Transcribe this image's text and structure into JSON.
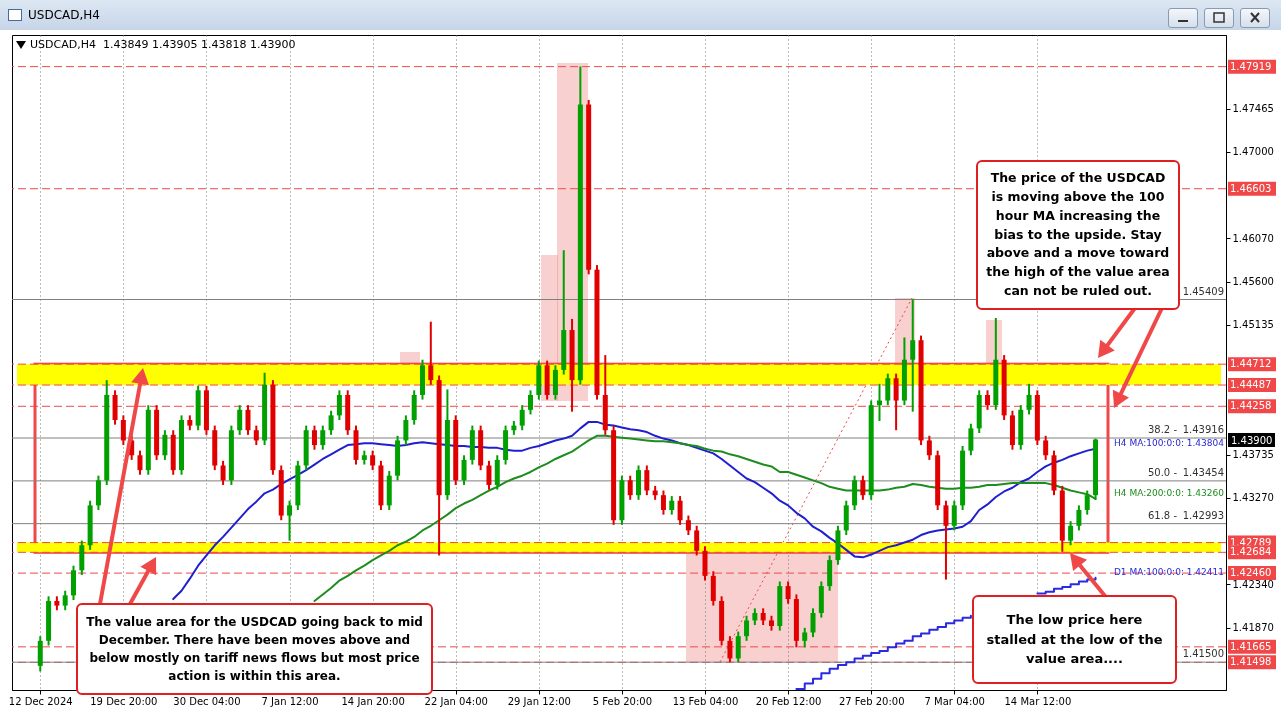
{
  "chart_data": {
    "type": "candlestick",
    "title": "USDCAD,H4",
    "subtitle": "USDCAD,H4  1.43849 1.43905 1.43818 1.43900",
    "categories": [
      "12 Dec 2024",
      null,
      null,
      null,
      null,
      null,
      null,
      null,
      null,
      null,
      "19 Dec 20:00",
      null,
      null,
      null,
      null,
      null,
      null,
      null,
      null,
      null,
      "30 Dec 04:00",
      null,
      null,
      null,
      null,
      null,
      null,
      null,
      null,
      null,
      "7 Jan 12:00",
      null,
      null,
      null,
      null,
      null,
      null,
      null,
      null,
      null,
      "14 Jan 20:00",
      null,
      null,
      null,
      null,
      null,
      null,
      null,
      null,
      null,
      "22 Jan 04:00",
      null,
      null,
      null,
      null,
      null,
      null,
      null,
      null,
      null,
      "29 Jan 12:00",
      null,
      null,
      null,
      null,
      null,
      null,
      null,
      null,
      null,
      "5 Feb 20:00",
      null,
      null,
      null,
      null,
      null,
      null,
      null,
      null,
      null,
      "13 Feb 04:00",
      null,
      null,
      null,
      null,
      null,
      null,
      null,
      null,
      null,
      "20 Feb 12:00",
      null,
      null,
      null,
      null,
      null,
      null,
      null,
      null,
      null,
      "27 Feb 20:00",
      null,
      null,
      null,
      null,
      null,
      null,
      null,
      null,
      null,
      "7 Mar 04:00",
      null,
      null,
      null,
      null,
      null,
      null,
      null,
      null,
      null,
      "14 Mar 12:00",
      null,
      null,
      null,
      null,
      null,
      null,
      null
    ],
    "ohlc": [
      [
        1.4146,
        1.4178,
        1.414,
        1.4173
      ],
      [
        1.4173,
        1.4221,
        1.4168,
        1.4216
      ],
      [
        1.4216,
        1.4221,
        1.4206,
        1.4211
      ],
      [
        1.4211,
        1.4227,
        1.4206,
        1.4222
      ],
      [
        1.4222,
        1.4254,
        1.4217,
        1.4249
      ],
      [
        1.4249,
        1.4281,
        1.4244,
        1.4276
      ],
      [
        1.4276,
        1.4324,
        1.4271,
        1.4319
      ],
      [
        1.4319,
        1.4351,
        1.4314,
        1.4346
      ],
      [
        1.4346,
        1.4454,
        1.4341,
        1.4438
      ],
      [
        1.4438,
        1.4443,
        1.4406,
        1.4411
      ],
      [
        1.4411,
        1.4416,
        1.4384,
        1.4389
      ],
      [
        1.4389,
        1.4394,
        1.4368,
        1.4373
      ],
      [
        1.4373,
        1.4378,
        1.4352,
        1.4357
      ],
      [
        1.4357,
        1.4427,
        1.4352,
        1.4422
      ],
      [
        1.4422,
        1.4427,
        1.4368,
        1.4373
      ],
      [
        1.4373,
        1.44,
        1.4368,
        1.4395
      ],
      [
        1.4395,
        1.44,
        1.4352,
        1.4357
      ],
      [
        1.4357,
        1.4416,
        1.4352,
        1.4411
      ],
      [
        1.4411,
        1.4416,
        1.44,
        1.4405
      ],
      [
        1.4405,
        1.4448,
        1.44,
        1.4443
      ],
      [
        1.4443,
        1.4448,
        1.4395,
        1.44
      ],
      [
        1.44,
        1.4405,
        1.4357,
        1.4362
      ],
      [
        1.4362,
        1.4367,
        1.4341,
        1.4346
      ],
      [
        1.4346,
        1.4405,
        1.4341,
        1.44
      ],
      [
        1.44,
        1.4427,
        1.4395,
        1.4422
      ],
      [
        1.4422,
        1.4427,
        1.4395,
        1.44
      ],
      [
        1.44,
        1.4405,
        1.4384,
        1.4389
      ],
      [
        1.4389,
        1.4462,
        1.4384,
        1.4449
      ],
      [
        1.4449,
        1.4454,
        1.4352,
        1.4357
      ],
      [
        1.4357,
        1.4362,
        1.4303,
        1.4308
      ],
      [
        1.4308,
        1.4324,
        1.4281,
        1.4319
      ],
      [
        1.4319,
        1.4367,
        1.4314,
        1.4362
      ],
      [
        1.4362,
        1.4405,
        1.4357,
        1.44
      ],
      [
        1.44,
        1.4405,
        1.4379,
        1.4384
      ],
      [
        1.4384,
        1.4405,
        1.4379,
        1.44
      ],
      [
        1.44,
        1.4421,
        1.4395,
        1.4416
      ],
      [
        1.4416,
        1.4443,
        1.4411,
        1.4438
      ],
      [
        1.4438,
        1.4443,
        1.4395,
        1.44
      ],
      [
        1.44,
        1.4405,
        1.4363,
        1.4368
      ],
      [
        1.4368,
        1.4378,
        1.4363,
        1.4373
      ],
      [
        1.4373,
        1.4378,
        1.4357,
        1.4362
      ],
      [
        1.4362,
        1.4367,
        1.4314,
        1.4319
      ],
      [
        1.4319,
        1.4356,
        1.4314,
        1.4351
      ],
      [
        1.4351,
        1.4394,
        1.4346,
        1.4389
      ],
      [
        1.4389,
        1.4416,
        1.4384,
        1.4411
      ],
      [
        1.4411,
        1.4443,
        1.4406,
        1.4438
      ],
      [
        1.4438,
        1.4476,
        1.4433,
        1.447
      ],
      [
        1.447,
        1.4517,
        1.4449,
        1.4454
      ],
      [
        1.4454,
        1.4459,
        1.4265,
        1.433
      ],
      [
        1.433,
        1.4444,
        1.4325,
        1.4411
      ],
      [
        1.4411,
        1.4416,
        1.4341,
        1.4346
      ],
      [
        1.4346,
        1.4373,
        1.4341,
        1.4368
      ],
      [
        1.4368,
        1.4405,
        1.4363,
        1.44
      ],
      [
        1.44,
        1.4405,
        1.4357,
        1.4362
      ],
      [
        1.4362,
        1.4367,
        1.4336,
        1.4341
      ],
      [
        1.4341,
        1.4373,
        1.4336,
        1.4368
      ],
      [
        1.4368,
        1.4405,
        1.4363,
        1.44
      ],
      [
        1.44,
        1.441,
        1.4395,
        1.4405
      ],
      [
        1.4405,
        1.4427,
        1.44,
        1.4422
      ],
      [
        1.4422,
        1.4443,
        1.4417,
        1.4438
      ],
      [
        1.4438,
        1.4475,
        1.4433,
        1.447
      ],
      [
        1.447,
        1.4475,
        1.4433,
        1.4438
      ],
      [
        1.4438,
        1.447,
        1.4433,
        1.4465
      ],
      [
        1.4465,
        1.4594,
        1.446,
        1.4508
      ],
      [
        1.4508,
        1.452,
        1.442,
        1.4454
      ],
      [
        1.4454,
        1.4792,
        1.4449,
        1.4751
      ],
      [
        1.4751,
        1.4756,
        1.4568,
        1.4573
      ],
      [
        1.4573,
        1.4578,
        1.4433,
        1.4438
      ],
      [
        1.4438,
        1.4481,
        1.4395,
        1.44
      ],
      [
        1.44,
        1.4405,
        1.4298,
        1.4303
      ],
      [
        1.4303,
        1.4351,
        1.4298,
        1.4346
      ],
      [
        1.4346,
        1.4351,
        1.4325,
        1.433
      ],
      [
        1.433,
        1.4362,
        1.4325,
        1.4357
      ],
      [
        1.4357,
        1.4362,
        1.433,
        1.4335
      ],
      [
        1.4335,
        1.434,
        1.4325,
        1.433
      ],
      [
        1.433,
        1.4335,
        1.4309,
        1.4314
      ],
      [
        1.4314,
        1.4329,
        1.4309,
        1.4324
      ],
      [
        1.4324,
        1.4329,
        1.4298,
        1.4303
      ],
      [
        1.4303,
        1.4308,
        1.4287,
        1.4292
      ],
      [
        1.4292,
        1.4297,
        1.4265,
        1.427
      ],
      [
        1.427,
        1.4275,
        1.4238,
        1.4243
      ],
      [
        1.4243,
        1.4248,
        1.4211,
        1.4216
      ],
      [
        1.4216,
        1.4221,
        1.4168,
        1.4173
      ],
      [
        1.4173,
        1.4178,
        1.415,
        1.4154
      ],
      [
        1.4154,
        1.4183,
        1.415,
        1.4178
      ],
      [
        1.4178,
        1.42,
        1.4173,
        1.4195
      ],
      [
        1.4195,
        1.4208,
        1.419,
        1.4203
      ],
      [
        1.4203,
        1.4208,
        1.419,
        1.4195
      ],
      [
        1.4195,
        1.42,
        1.4184,
        1.4189
      ],
      [
        1.4189,
        1.4237,
        1.4184,
        1.4232
      ],
      [
        1.4232,
        1.4237,
        1.4213,
        1.4218
      ],
      [
        1.4218,
        1.4223,
        1.4166,
        1.4173
      ],
      [
        1.4173,
        1.4187,
        1.4166,
        1.4182
      ],
      [
        1.4182,
        1.4208,
        1.4177,
        1.4203
      ],
      [
        1.4203,
        1.4237,
        1.4198,
        1.4232
      ],
      [
        1.4232,
        1.4265,
        1.4227,
        1.426
      ],
      [
        1.426,
        1.4297,
        1.4255,
        1.4292
      ],
      [
        1.4292,
        1.4324,
        1.4287,
        1.4319
      ],
      [
        1.4319,
        1.4351,
        1.4314,
        1.4346
      ],
      [
        1.4346,
        1.4351,
        1.4325,
        1.433
      ],
      [
        1.433,
        1.4432,
        1.4325,
        1.4427
      ],
      [
        1.4427,
        1.445,
        1.441,
        1.4432
      ],
      [
        1.4432,
        1.4461,
        1.4427,
        1.4456
      ],
      [
        1.4456,
        1.4461,
        1.44,
        1.4432
      ],
      [
        1.4432,
        1.45,
        1.4427,
        1.4476
      ],
      [
        1.4476,
        1.4541,
        1.442,
        1.4497
      ],
      [
        1.4497,
        1.4502,
        1.4384,
        1.4389
      ],
      [
        1.4389,
        1.4394,
        1.4368,
        1.4373
      ],
      [
        1.4373,
        1.4378,
        1.4314,
        1.4319
      ],
      [
        1.4319,
        1.4324,
        1.4239,
        1.4297
      ],
      [
        1.4297,
        1.4324,
        1.4292,
        1.4319
      ],
      [
        1.4319,
        1.4383,
        1.4314,
        1.4378
      ],
      [
        1.4378,
        1.4407,
        1.4373,
        1.4402
      ],
      [
        1.4402,
        1.4443,
        1.4397,
        1.4438
      ],
      [
        1.4438,
        1.4443,
        1.4422,
        1.4427
      ],
      [
        1.4427,
        1.4521,
        1.4422,
        1.4476
      ],
      [
        1.4476,
        1.4481,
        1.4411,
        1.4416
      ],
      [
        1.4416,
        1.4421,
        1.4379,
        1.4384
      ],
      [
        1.4384,
        1.4427,
        1.4379,
        1.4422
      ],
      [
        1.4422,
        1.445,
        1.4417,
        1.4438
      ],
      [
        1.4438,
        1.4443,
        1.4384,
        1.4389
      ],
      [
        1.4389,
        1.4394,
        1.4368,
        1.4373
      ],
      [
        1.4373,
        1.4378,
        1.433,
        1.4335
      ],
      [
        1.4335,
        1.434,
        1.4269,
        1.4281
      ],
      [
        1.4281,
        1.4302,
        1.4276,
        1.4297
      ],
      [
        1.4297,
        1.4319,
        1.4292,
        1.4314
      ],
      [
        1.4314,
        1.4335,
        1.4309,
        1.433
      ],
      [
        1.433,
        1.4391,
        1.4325,
        1.439
      ]
    ],
    "colors": [
      "#00a000",
      "#00a000",
      "#e00000",
      "#00a000",
      "#00a000",
      "#00a000",
      "#00a000",
      "#00a000",
      "#00a000",
      "#e00000",
      "#e00000",
      "#e00000",
      "#e00000",
      "#00a000",
      "#e00000",
      "#00a000",
      "#e00000",
      "#00a000",
      "#e00000",
      "#00a000",
      "#e00000",
      "#e00000",
      "#e00000",
      "#00a000",
      "#00a000",
      "#e00000",
      "#e00000",
      "#00a000",
      "#e00000",
      "#e00000",
      "#00a000",
      "#00a000",
      "#00a000",
      "#e00000",
      "#00a000",
      "#00a000",
      "#00a000",
      "#e00000",
      "#e00000",
      "#00a000",
      "#e00000",
      "#e00000",
      "#00a000",
      "#00a000",
      "#00a000",
      "#00a000",
      "#00a000",
      "#e00000",
      "#e00000",
      "#00a000",
      "#e00000",
      "#00a000",
      "#00a000",
      "#e00000",
      "#e00000",
      "#00a000",
      "#00a000",
      "#00a000",
      "#00a000",
      "#00a000",
      "#00a000",
      "#e00000",
      "#00a000",
      "#00a000",
      "#e00000",
      "#00a000",
      "#e00000",
      "#e00000",
      "#e00000",
      "#e00000",
      "#00a000",
      "#e00000",
      "#00a000",
      "#e00000",
      "#e00000",
      "#e00000",
      "#00a000",
      "#e00000",
      "#e00000",
      "#e00000",
      "#e00000",
      "#e00000",
      "#e00000",
      "#e00000",
      "#00a000",
      "#00a000",
      "#00a000",
      "#e00000",
      "#e00000",
      "#00a000",
      "#e00000",
      "#e00000",
      "#00a000",
      "#00a000",
      "#00a000",
      "#00a000",
      "#00a000",
      "#00a000",
      "#00a000",
      "#e00000",
      "#00a000",
      "#00a000",
      "#00a000",
      "#e00000",
      "#00a000",
      "#00a000",
      "#e00000",
      "#e00000",
      "#e00000",
      "#e00000",
      "#00a000",
      "#00a000",
      "#00a000",
      "#00a000",
      "#e00000",
      "#00a000",
      "#e00000",
      "#e00000",
      "#00a000",
      "#00a000",
      "#e00000",
      "#e00000",
      "#e00000",
      "#e00000",
      "#00a000",
      "#00a000",
      "#00a000",
      "#00a000"
    ],
    "series": [
      {
        "type": "line",
        "name": "H4 MA:100:0:0: 1.43804",
        "color": "#1f1fd0",
        "values": [
          null,
          null,
          null,
          null,
          null,
          null,
          null,
          null,
          null,
          null,
          null,
          null,
          null,
          null,
          null,
          null,
          1.4218,
          1.4227,
          1.424,
          1.4254,
          1.4265,
          1.4276,
          1.4285,
          1.4295,
          1.4305,
          1.4315,
          1.4323,
          1.4332,
          1.4336,
          1.4342,
          1.4347,
          1.4352,
          1.4357,
          1.4363,
          1.4369,
          1.4374,
          1.4379,
          1.4384,
          1.4385,
          1.4386,
          1.4386,
          1.4385,
          1.4384,
          1.4383,
          1.4384,
          1.4386,
          1.4387,
          1.4386,
          1.4385,
          1.4384,
          1.4383,
          1.4383,
          1.4382,
          1.4382,
          1.4381,
          1.4381,
          1.4379,
          1.4378,
          1.4378,
          1.4381,
          1.4383,
          1.4386,
          1.4389,
          1.4391,
          1.4394,
          1.4402,
          1.4409,
          1.4409,
          1.4406,
          1.4405,
          1.4403,
          1.4401,
          1.44,
          1.4398,
          1.4394,
          1.4391,
          1.4389,
          1.4386,
          1.4384,
          1.4381,
          1.4378,
          1.4375,
          1.4369,
          1.4362,
          1.4355,
          1.4348,
          1.4344,
          1.4338,
          1.4332,
          1.4324,
          1.4319,
          1.4311,
          1.4305,
          1.4296,
          1.4291,
          1.4284,
          1.4278,
          1.4271,
          1.4264,
          1.4263,
          1.4266,
          1.427,
          1.4274,
          1.4276,
          1.4279,
          1.4282,
          1.4287,
          1.429,
          1.4292,
          1.4293,
          1.4294,
          1.4296,
          1.4302,
          1.4314,
          1.432,
          1.4328,
          1.4334,
          1.4338,
          1.4344,
          1.4348,
          1.4355,
          1.4361,
          1.4365,
          1.4368,
          1.4372,
          1.4375,
          1.4378,
          1.438
        ]
      },
      {
        "type": "line",
        "name": "H4 MA:200:0:0: 1.43260",
        "color": "#1e8c1e",
        "values": [
          null,
          null,
          null,
          null,
          null,
          null,
          null,
          null,
          null,
          null,
          null,
          null,
          null,
          null,
          null,
          null,
          null,
          null,
          null,
          null,
          null,
          null,
          null,
          null,
          null,
          null,
          null,
          null,
          null,
          null,
          null,
          null,
          null,
          1.4216,
          1.4223,
          1.423,
          1.4238,
          1.4243,
          1.4249,
          1.4254,
          1.426,
          1.4265,
          1.427,
          1.4276,
          1.428,
          1.4285,
          1.4292,
          1.4297,
          1.4303,
          1.4309,
          1.4316,
          1.4321,
          1.4325,
          1.433,
          1.4335,
          1.4339,
          1.4344,
          1.4348,
          1.4351,
          1.4355,
          1.436,
          1.4364,
          1.4369,
          1.4373,
          1.4377,
          1.4383,
          1.4389,
          1.4394,
          1.4394,
          1.4393,
          1.4392,
          1.4391,
          1.439,
          1.4389,
          1.4388,
          1.4388,
          1.4387,
          1.4386,
          1.4384,
          1.4383,
          1.438,
          1.4378,
          1.4377,
          1.4374,
          1.4372,
          1.4369,
          1.4366,
          1.4363,
          1.4361,
          1.4355,
          1.4355,
          1.4352,
          1.4349,
          1.4346,
          1.4343,
          1.4339,
          1.4337,
          1.4335,
          1.4335,
          1.4335,
          1.4335,
          1.4335,
          1.4336,
          1.4338,
          1.4339,
          1.4342,
          1.4341,
          1.4339,
          1.4338,
          1.4337,
          1.4337,
          1.4338,
          1.4338,
          1.4339,
          1.4341,
          1.4341,
          1.4342,
          1.4343,
          1.4343,
          1.4343,
          1.4343,
          1.4343,
          1.4341,
          1.4338,
          1.4335,
          1.4333,
          1.4331,
          1.4326
        ]
      },
      {
        "type": "step",
        "name": "D1 MA:100:0:0: 1.42411",
        "color": "#2a2ae0",
        "values": [
          null,
          null,
          null,
          null,
          null,
          null,
          null,
          null,
          null,
          null,
          null,
          null,
          null,
          null,
          null,
          null,
          null,
          null,
          null,
          null,
          null,
          null,
          null,
          null,
          null,
          null,
          null,
          null,
          null,
          null,
          null,
          null,
          null,
          null,
          null,
          null,
          null,
          null,
          null,
          null,
          null,
          null,
          null,
          null,
          null,
          null,
          null,
          null,
          null,
          null,
          null,
          null,
          null,
          null,
          null,
          null,
          null,
          null,
          null,
          null,
          null,
          null,
          null,
          null,
          null,
          null,
          null,
          null,
          null,
          null,
          null,
          null,
          null,
          null,
          null,
          null,
          null,
          null,
          null,
          null,
          null,
          null,
          null,
          null,
          null,
          null,
          null,
          null,
          null,
          null,
          null,
          1.4121,
          1.4127,
          1.4132,
          1.4138,
          1.4143,
          1.4147,
          1.415,
          1.4154,
          1.4157,
          1.416,
          1.4162,
          1.4166,
          1.417,
          1.4173,
          1.4178,
          1.4181,
          1.4185,
          1.4188,
          1.4192,
          1.4195,
          1.4198,
          1.42,
          null,
          null,
          null,
          null,
          null,
          null,
          null,
          1.4224,
          1.4226,
          1.4229,
          1.4231,
          1.4234,
          1.4237,
          1.4239,
          1.4241
        ]
      }
    ],
    "ylim": [
      1.412,
      1.4826
    ],
    "yticks": [
      {
        "value": 1.4187,
        "label": "1.41870"
      },
      {
        "value": 1.4234,
        "label": "1.42340"
      },
      {
        "value": 1.4327,
        "label": "1.43270"
      },
      1.43735,
      1.45135,
      {
        "value": 1.456,
        "label": "1.45600"
      },
      {
        "value": 1.4607,
        "label": "1.46070"
      },
      {
        "value": 1.47,
        "label": "1.47000"
      },
      1.47465
    ],
    "grid": "x",
    "bands": [
      {
        "axis": "y",
        "from": 1.44487,
        "to": 1.44712,
        "color": "#ffff00"
      },
      {
        "axis": "y",
        "from": 1.42684,
        "to": 1.42789,
        "color": "#ffff00"
      }
    ],
    "ref_lines": [
      {
        "axis": "y",
        "value": 1.47919,
        "label": "1.47919",
        "color": "#f04848",
        "line_style": "dashed"
      },
      {
        "axis": "y",
        "value": 1.46603,
        "label": "1.46603",
        "color": "#f04848",
        "line_style": "dashed"
      },
      {
        "axis": "y",
        "value": 1.44712,
        "label": "1.44712",
        "color": "#f04848",
        "line_style": "dashed"
      },
      {
        "axis": "y",
        "value": 1.44487,
        "label": "1.44487",
        "color": "#f04848",
        "line_style": "dashed"
      },
      {
        "axis": "y",
        "value": 1.44258,
        "label": "1.44258",
        "color": "#f04848",
        "line_style": "dashed"
      },
      {
        "axis": "y",
        "value": 1.42789,
        "label": "1.42789",
        "color": "#f04848",
        "line_style": "dashed"
      },
      {
        "axis": "y",
        "value": 1.42684,
        "label": "1.42684",
        "color": "#f04848",
        "line_style": "dashed"
      },
      {
        "axis": "y",
        "value": 1.4246,
        "label": "1.42460",
        "color": "#f04848",
        "line_style": "dashed"
      },
      {
        "axis": "y",
        "value": 1.41665,
        "label": "1.41665",
        "color": "#f04848",
        "line_style": "dashed"
      },
      {
        "axis": "y",
        "value": 1.41498,
        "label": "1.41498",
        "color": "#f04848",
        "line_style": "dashed"
      },
      {
        "axis": "y",
        "value": 1.45409,
        "label": "1.45409",
        "color": "#808080",
        "line_style": "solid"
      },
      {
        "axis": "y",
        "value": 1.43916,
        "label": "1.43916",
        "color": "#808080",
        "line_style": "solid"
      },
      {
        "axis": "y",
        "value": 1.43454,
        "label": "1.43454",
        "color": "#808080",
        "line_style": "solid"
      },
      {
        "axis": "y",
        "value": 1.42993,
        "label": "1.42993",
        "color": "#808080",
        "line_style": "solid"
      },
      {
        "axis": "y",
        "value": 1.415,
        "label": "1.41500",
        "color": "#808080",
        "line_style": "solid"
      }
    ],
    "annotations": [
      "The price of the USDCAD is moving above the 100 hour MA increasing the bias to the upside. Stay above and a move toward the high of the value area can not be ruled out.",
      "The value area for the USDCAD going back to mid December. There have been moves above and below mostly on tariff news flows but most price action is within this area.",
      "The low price here stalled at the low of the value area....",
      "1.43900",
      {
        "text": "38.2 -",
        "y": 1.43916
      },
      {
        "text": "50.0 -",
        "y": 1.43454
      },
      {
        "text": "61.8 -",
        "y": 1.42993
      }
    ]
  }
}
